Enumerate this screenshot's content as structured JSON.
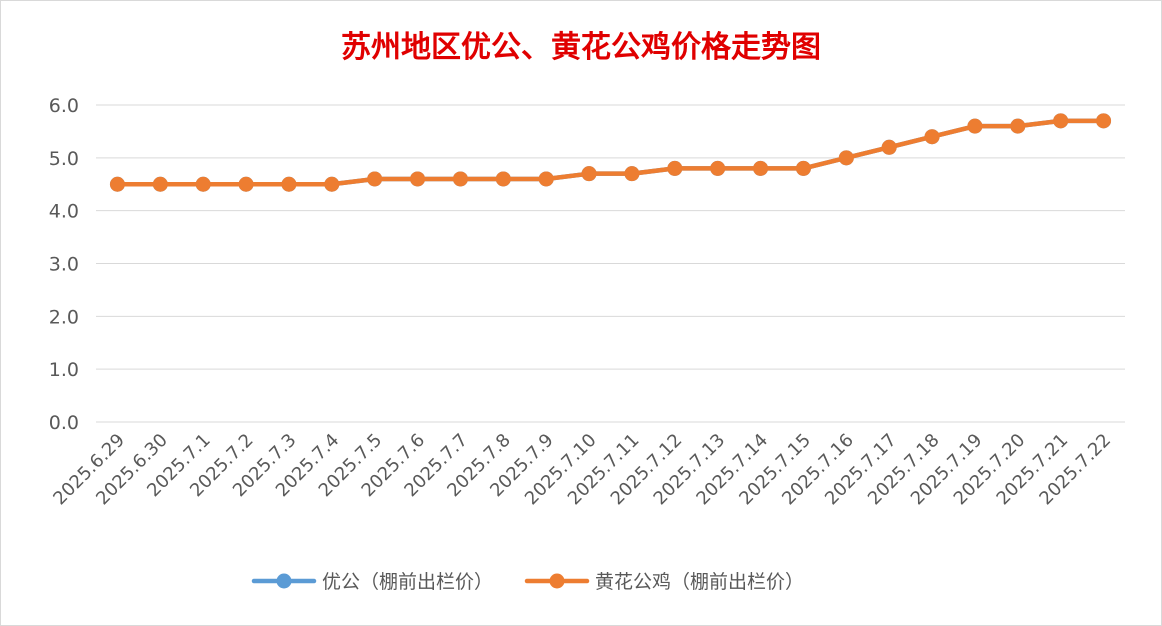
{
  "chart_data": {
    "type": "line",
    "title": "苏州地区优公、黄花公鸡价格走势图",
    "xlabel": "",
    "ylabel": "",
    "ylim": [
      0,
      6
    ],
    "yticks": [
      "0.0",
      "1.0",
      "2.0",
      "3.0",
      "4.0",
      "5.0",
      "6.0"
    ],
    "grid": true,
    "legend_position": "bottom",
    "categories": [
      "2025.6.29",
      "2025.6.30",
      "2025.7.1",
      "2025.7.2",
      "2025.7.3",
      "2025.7.4",
      "2025.7.5",
      "2025.7.6",
      "2025.7.7",
      "2025.7.8",
      "2025.7.9",
      "2025.7.10",
      "2025.7.11",
      "2025.7.12",
      "2025.7.13",
      "2025.7.14",
      "2025.7.15",
      "2025.7.16",
      "2025.7.17",
      "2025.7.18",
      "2025.7.19",
      "2025.7.20",
      "2025.7.21",
      "2025.7.22"
    ],
    "series": [
      {
        "name": "优公（棚前出栏价）",
        "color": "#5b9bd5",
        "values": [
          4.5,
          4.5,
          4.5,
          4.5,
          4.5,
          4.5,
          4.6,
          4.6,
          4.6,
          4.6,
          4.6,
          4.7,
          4.7,
          4.8,
          4.8,
          4.8,
          4.8,
          5.0,
          5.2,
          5.4,
          5.6,
          5.6,
          5.7,
          5.7
        ]
      },
      {
        "name": "黄花公鸡（棚前出栏价）",
        "color": "#ed7d31",
        "values": [
          4.5,
          4.5,
          4.5,
          4.5,
          4.5,
          4.5,
          4.6,
          4.6,
          4.6,
          4.6,
          4.6,
          4.7,
          4.7,
          4.8,
          4.8,
          4.8,
          4.8,
          5.0,
          5.2,
          5.4,
          5.6,
          5.6,
          5.7,
          5.7
        ]
      }
    ]
  }
}
